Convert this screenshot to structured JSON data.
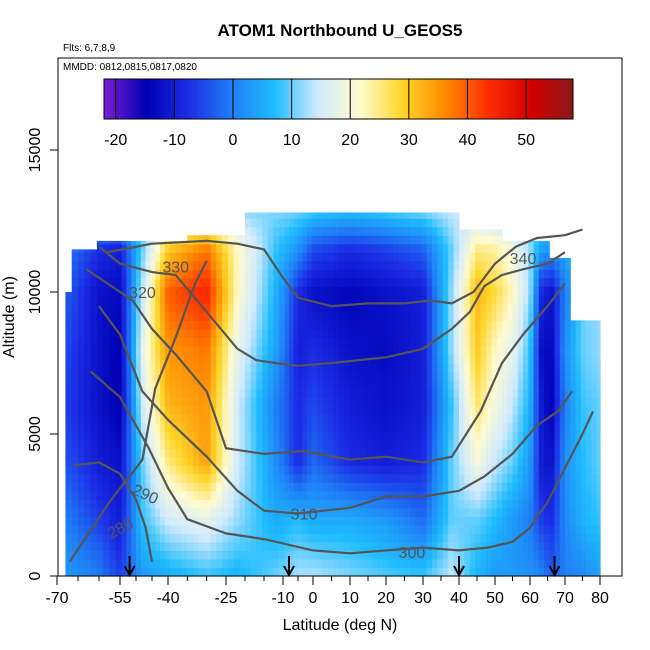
{
  "header": {
    "title": "ATOM1 Northbound U_GEOS5",
    "flights": "Flts: 6,7,8,9",
    "dates": "MMDD: 0812,0815,0817,0820"
  },
  "chart_data": {
    "type": "heatmap",
    "title": "ATOM1 Northbound U_GEOS5",
    "xlabel": "Latitude (deg N)",
    "ylabel": "Altitude (m)",
    "xlim": [
      -70,
      80
    ],
    "ylim": [
      0,
      17500
    ],
    "x_ticks": [
      -70,
      -55,
      -40,
      -25,
      -10,
      0,
      10,
      20,
      30,
      40,
      50,
      60,
      70,
      80
    ],
    "y_ticks": [
      0,
      5000,
      10000,
      15000
    ],
    "colorbar": {
      "range": [
        -22,
        58
      ],
      "ticks": [
        -20,
        -10,
        0,
        10,
        20,
        30,
        40,
        50
      ],
      "colors": [
        "#7a1fd2",
        "#0000b4",
        "#1c2ee6",
        "#1f7ef5",
        "#1fbcff",
        "#cfeaff",
        "#fffbd0",
        "#ffd52a",
        "#ff8a00",
        "#ff2f00",
        "#d40000",
        "#8b1a1a"
      ]
    },
    "u_field_lat_grid": [
      -68,
      -60,
      -55,
      -48,
      -40,
      -30,
      -22,
      -12,
      -5,
      0,
      10,
      20,
      30,
      38,
      45,
      50,
      55,
      60,
      63,
      66,
      70,
      75,
      80
    ],
    "u_field_alt_grid": [
      0,
      2000,
      4000,
      6000,
      8000,
      10000,
      11500,
      12800
    ],
    "u_field_ms": [
      [
        3,
        0,
        -6,
        3,
        5,
        8,
        6,
        10,
        13,
        13,
        11,
        9,
        8,
        14,
        6,
        3,
        3,
        2,
        1,
        -3,
        0,
        1,
        4
      ],
      [
        0,
        -6,
        -10,
        8,
        15,
        18,
        12,
        5,
        7,
        5,
        5,
        3,
        -2,
        10,
        10,
        7,
        3,
        0,
        -6,
        -8,
        1,
        6,
        8
      ],
      [
        -4,
        -10,
        -12,
        10,
        25,
        34,
        15,
        2,
        -8,
        -2,
        -8,
        -10,
        -8,
        10,
        20,
        14,
        10,
        3,
        -10,
        -12,
        2,
        7,
        10
      ],
      [
        -6,
        -12,
        -15,
        15,
        32,
        35,
        15,
        0,
        -8,
        -5,
        -10,
        -12,
        -10,
        8,
        26,
        20,
        14,
        6,
        -10,
        -15,
        0,
        8,
        10
      ],
      [
        -5,
        -12,
        -15,
        18,
        35,
        38,
        18,
        4,
        -10,
        -8,
        -12,
        -13,
        -10,
        12,
        30,
        22,
        18,
        8,
        -12,
        -14,
        2,
        10,
        12
      ],
      [
        -3,
        -12,
        -13,
        14,
        40,
        45,
        22,
        6,
        -8,
        -12,
        -14,
        -12,
        -10,
        12,
        32,
        28,
        22,
        12,
        -8,
        -12,
        0,
        10,
        12
      ],
      [
        0,
        -8,
        -10,
        10,
        30,
        38,
        22,
        8,
        2,
        -5,
        -8,
        -6,
        -3,
        10,
        25,
        24,
        20,
        12,
        4,
        2,
        4,
        10,
        12
      ],
      [
        8,
        8,
        8,
        10,
        14,
        14,
        12,
        11,
        10,
        8,
        6,
        8,
        10,
        14,
        14,
        12,
        12,
        10,
        10,
        10,
        10,
        10,
        10
      ]
    ],
    "theta_contours": [
      {
        "label": "280",
        "points": [
          [
            -67,
            500
          ],
          [
            -62,
            1600
          ],
          [
            -58,
            2500
          ],
          [
            -55,
            3100
          ],
          [
            -52,
            3500
          ],
          [
            -48,
            4100
          ],
          [
            -44,
            6600
          ],
          [
            -38,
            8400
          ],
          [
            -33,
            10300
          ],
          [
            -30,
            11100
          ]
        ]
      },
      {
        "label": "290",
        "points": [
          [
            -66,
            3900
          ],
          [
            -60,
            4000
          ],
          [
            -55,
            3600
          ],
          [
            -50,
            2700
          ],
          [
            -47,
            1700
          ],
          [
            -45,
            500
          ]
        ]
      },
      {
        "label": "300",
        "points": [
          [
            -62,
            7200
          ],
          [
            -55,
            6300
          ],
          [
            -46,
            4500
          ],
          [
            -40,
            3100
          ],
          [
            -35,
            2000
          ],
          [
            -25,
            1500
          ],
          [
            -15,
            1300
          ],
          [
            0,
            900
          ],
          [
            10,
            800
          ],
          [
            20,
            900
          ],
          [
            30,
            1000
          ],
          [
            40,
            900
          ],
          [
            48,
            1000
          ],
          [
            55,
            1200
          ],
          [
            60,
            1700
          ],
          [
            65,
            2600
          ],
          [
            70,
            3800
          ],
          [
            75,
            5000
          ],
          [
            78,
            5800
          ]
        ]
      },
      {
        "label": "310",
        "points": [
          [
            -60,
            9500
          ],
          [
            -55,
            8500
          ],
          [
            -48,
            6500
          ],
          [
            -40,
            5500
          ],
          [
            -30,
            4200
          ],
          [
            -22,
            3000
          ],
          [
            -15,
            2300
          ],
          [
            -5,
            2200
          ],
          [
            10,
            2400
          ],
          [
            20,
            2800
          ],
          [
            30,
            2800
          ],
          [
            40,
            3000
          ],
          [
            47,
            3500
          ],
          [
            55,
            4300
          ],
          [
            62,
            5300
          ],
          [
            68,
            5800
          ],
          [
            72,
            6500
          ]
        ]
      },
      {
        "label": "320",
        "points": [
          [
            -63,
            10800
          ],
          [
            -58,
            10300
          ],
          [
            -51,
            9700
          ],
          [
            -45,
            8700
          ],
          [
            -38,
            7800
          ],
          [
            -30,
            6500
          ],
          [
            -25,
            4500
          ],
          [
            -15,
            4300
          ],
          [
            -3,
            4400
          ],
          [
            10,
            4100
          ],
          [
            20,
            4200
          ],
          [
            30,
            4000
          ],
          [
            38,
            4200
          ],
          [
            46,
            5800
          ],
          [
            52,
            7500
          ],
          [
            58,
            8500
          ],
          [
            65,
            9500
          ],
          [
            70,
            10300
          ]
        ]
      },
      {
        "label": "330",
        "points": [
          [
            -60,
            11600
          ],
          [
            -55,
            11000
          ],
          [
            -45,
            10700
          ],
          [
            -38,
            10600
          ],
          [
            -30,
            9300
          ],
          [
            -22,
            8000
          ],
          [
            -17,
            7600
          ],
          [
            -12,
            7500
          ],
          [
            -5,
            7400
          ],
          [
            5,
            7500
          ],
          [
            20,
            7700
          ],
          [
            30,
            8000
          ],
          [
            38,
            8700
          ],
          [
            43,
            9300
          ],
          [
            47,
            10200
          ],
          [
            52,
            10600
          ],
          [
            58,
            10800
          ],
          [
            65,
            11000
          ],
          [
            70,
            11400
          ]
        ]
      },
      {
        "label": "340",
        "points": [
          [
            -58,
            11400
          ],
          [
            -45,
            11700
          ],
          [
            -30,
            11800
          ],
          [
            -22,
            11700
          ],
          [
            -15,
            11500
          ],
          [
            -10,
            10500
          ],
          [
            -5,
            9800
          ],
          [
            5,
            9500
          ],
          [
            15,
            9600
          ],
          [
            25,
            9600
          ],
          [
            32,
            9700
          ],
          [
            38,
            9600
          ],
          [
            44,
            10000
          ],
          [
            50,
            11000
          ],
          [
            56,
            11600
          ],
          [
            62,
            11900
          ],
          [
            70,
            12000
          ],
          [
            75,
            12200
          ]
        ]
      }
    ],
    "flight_markers_lat": [
      -52,
      -8,
      40,
      67
    ]
  }
}
